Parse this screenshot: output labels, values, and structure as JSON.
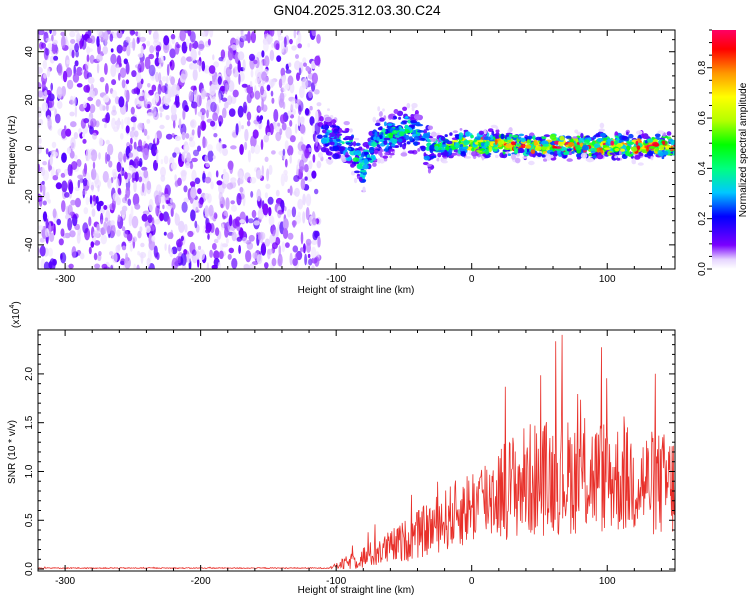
{
  "title": "GN04.2025.312.03.30.C24",
  "chart_data": [
    {
      "type": "heatmap",
      "description_label": "spectrogram",
      "xlabel": "Height of straight line (km)",
      "ylabel": "Frequency (Hz)",
      "xlim": [
        -320,
        150
      ],
      "ylim": [
        -50,
        49
      ],
      "xticks": [
        -300,
        -200,
        -100,
        0,
        100
      ],
      "yticks": [
        -40,
        -20,
        0,
        20,
        40
      ],
      "colorbar": {
        "label": "Normalized spectral amplitude",
        "range": [
          0.0,
          0.95
        ],
        "ticks": [
          0.0,
          0.2,
          0.4,
          0.6,
          0.8
        ]
      },
      "noise_region_x": [
        -320,
        -112
      ],
      "signal_track": {
        "x": [
          -112,
          -100,
          -90,
          -80,
          -70,
          -60,
          -50,
          -40,
          -30,
          -20,
          -10,
          0,
          20,
          40,
          60,
          80,
          100,
          120,
          150
        ],
        "freq": [
          6,
          3,
          1,
          -8,
          4,
          5,
          8,
          6,
          0,
          1,
          2,
          2,
          2,
          1,
          1,
          1,
          1,
          1,
          1
        ],
        "peak_amplitude": [
          0.35,
          0.35,
          0.4,
          0.5,
          0.4,
          0.45,
          0.45,
          0.4,
          0.45,
          0.55,
          0.7,
          0.75,
          0.8,
          0.85,
          0.9,
          0.9,
          0.9,
          0.92,
          0.9
        ]
      }
    },
    {
      "type": "line",
      "xlabel": "Height of straight line (km)",
      "ylabel": "SNR (10 * v/v)",
      "y_scale_label": "(x10",
      "y_scale_exponent": "4",
      "xlim": [
        -320,
        150
      ],
      "ylim": [
        -0.02,
        2.45
      ],
      "xticks": [
        -300,
        -200,
        -100,
        0,
        100
      ],
      "yticks": [
        0.0,
        0.5,
        1.0,
        1.5,
        2.0
      ],
      "ytick_labels": [
        "0.0",
        "0.5",
        "1.0",
        "1.5",
        "2.0"
      ],
      "series": [
        {
          "name": "SNR",
          "color": "#e8302a",
          "envelope_x": [
            -320,
            -105,
            -95,
            -80,
            -60,
            -40,
            -20,
            0,
            20,
            40,
            60,
            80,
            100,
            120,
            150
          ],
          "envelope_mean": [
            0.01,
            0.01,
            0.05,
            0.12,
            0.22,
            0.35,
            0.5,
            0.65,
            0.8,
            0.9,
            0.95,
            0.95,
            0.95,
            0.9,
            0.85
          ],
          "envelope_spread": [
            0.005,
            0.005,
            0.06,
            0.12,
            0.18,
            0.25,
            0.32,
            0.4,
            0.5,
            0.6,
            0.6,
            0.6,
            0.6,
            0.55,
            0.55
          ],
          "max_value": 2.4
        }
      ]
    }
  ]
}
